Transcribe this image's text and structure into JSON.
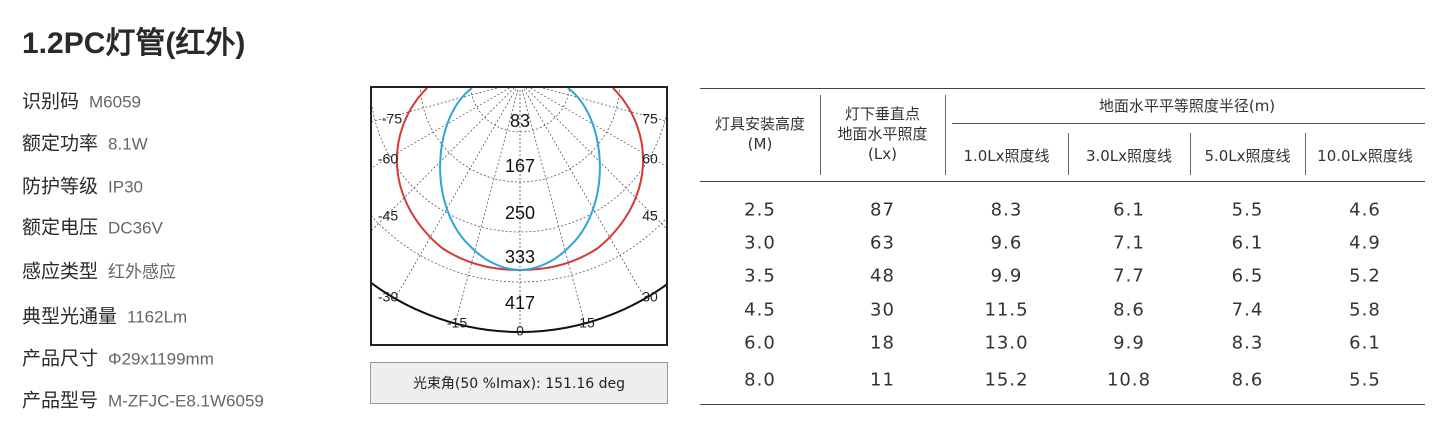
{
  "title": "1.2PC灯管(红外)",
  "specs": [
    {
      "label": "识别码",
      "value": "M6059"
    },
    {
      "label": "额定功率",
      "value": "8.1W"
    },
    {
      "label": "防护等级",
      "value": "IP30"
    },
    {
      "label": "额定电压",
      "value": "DC36V"
    },
    {
      "label": "感应类型",
      "value": "红外感应"
    },
    {
      "label": "典型光通量",
      "value": "1162Lm"
    },
    {
      "label": "产品尺寸",
      "value": "Φ29x1199mm"
    },
    {
      "label": "产品型号",
      "value": "M-ZFJC-E8.1W6059"
    }
  ],
  "polar": {
    "angle_labels": [
      "-75",
      "75",
      "-60",
      "60",
      "-45",
      "45",
      "-30",
      "30",
      "-15",
      "15",
      "0"
    ],
    "radial_labels": [
      "83",
      "167",
      "250",
      "333",
      "417"
    ],
    "caption": "光束角(50 %Imax): 151.16 deg"
  },
  "table": {
    "height_header": [
      "灯具安装高度",
      "(M)"
    ],
    "illuminance_header": [
      "灯下垂直点",
      "地面水平照度",
      "(Lx)"
    ],
    "radius_header": "地面水平平等照度半径(m)",
    "radius_columns": [
      "1.0Lx照度线",
      "3.0Lx照度线",
      "5.0Lx照度线",
      "10.0Lx照度线"
    ],
    "rows": [
      [
        "2.5",
        "87",
        "8.3",
        "6.1",
        "5.5",
        "4.6"
      ],
      [
        "3.0",
        "63",
        "9.6",
        "7.1",
        "6.1",
        "4.9"
      ],
      [
        "3.5",
        "48",
        "9.9",
        "7.7",
        "6.5",
        "5.2"
      ],
      [
        "4.5",
        "30",
        "11.5",
        "8.6",
        "7.4",
        "5.8"
      ],
      [
        "6.0",
        "18",
        "13.0",
        "9.9",
        "8.3",
        "6.1"
      ],
      [
        "8.0",
        "11",
        "15.2",
        "10.8",
        "8.6",
        "5.5"
      ]
    ]
  }
}
